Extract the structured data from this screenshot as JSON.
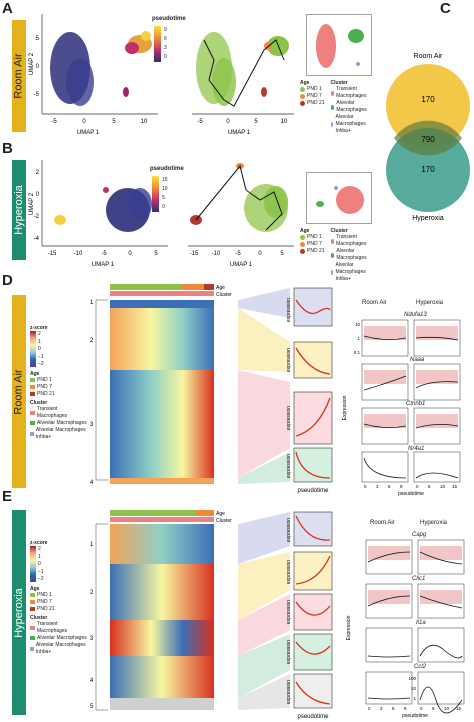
{
  "panels": {
    "a": "A",
    "b": "B",
    "c": "C",
    "d": "D",
    "e": "E"
  },
  "conditions": {
    "room_air": "Room Air",
    "hyperoxia": "Hyperoxia"
  },
  "umap": {
    "xlabel": "UMAP 1",
    "ylabel": "UMAP 2",
    "a_xticks": [
      "-5",
      "0",
      "5",
      "10"
    ],
    "a_yticks": [
      "5",
      "0",
      "-5"
    ],
    "b_xticks": [
      "-15",
      "-10",
      "-5",
      "0",
      "5"
    ],
    "b_yticks": [
      "2",
      "0",
      "-2",
      "-4"
    ],
    "a_traj_xticks": [
      "-5",
      "0",
      "5",
      "10"
    ],
    "b_traj_xticks": [
      "-15",
      "-10",
      "-5",
      "0",
      "5"
    ]
  },
  "pseudotime": {
    "title": "pseudotime",
    "a_ticks": [
      "9",
      "6",
      "3",
      "0"
    ],
    "b_ticks": [
      "15",
      "10",
      "5",
      "0"
    ]
  },
  "legend": {
    "age_title": "Age",
    "cluster_title": "Cluster",
    "ages": [
      "PND 1",
      "PND 7",
      "PND 21"
    ],
    "clusters": [
      "Transient Macrophages",
      "Alveolar Macrophages",
      "Alveolar Macrophages Inhba+"
    ],
    "age_colors": [
      "#8bc34a",
      "#ef8a3a",
      "#b33a2a"
    ],
    "cluster_colors": [
      "#ef8080",
      "#4caf50",
      "#8aa6d8"
    ]
  },
  "venn": {
    "top_label": "Room Air",
    "bottom_label": "Hyperoxia",
    "top_only": "170",
    "overlap": "790",
    "bottom_only": "170",
    "top_color": "#f2c43d",
    "bottom_color": "#3a9c8c"
  },
  "heatmap": {
    "zscore_title": "z-score",
    "zscore_ticks": [
      "2",
      "1",
      "0",
      "−1",
      "−2"
    ],
    "age_label": "Age",
    "cluster_label": "Cluster",
    "d_clusters": [
      "1",
      "2",
      "3",
      "4"
    ],
    "e_clusters": [
      "1",
      "2",
      "3",
      "4",
      "5"
    ],
    "expression": "expression",
    "pseudotime_x": "pseudotime"
  },
  "genes": {
    "col_room_air": "Room Air",
    "col_hyperoxia": "Hyperoxia",
    "ylabel": "Expression",
    "xlabel": "pseudotime",
    "xticks_ra": [
      "0",
      "3",
      "6",
      "9"
    ],
    "xticks_hx": [
      "0",
      "5",
      "10",
      "15"
    ],
    "d_genes": [
      "Ndufa13",
      "Naaa",
      "Ctnnb1",
      "Nr4a1"
    ],
    "e_genes": [
      "Capg",
      "Clic1",
      "Il1a",
      "Ccl2"
    ],
    "yticks_a": [
      "10",
      "1",
      "0.1"
    ],
    "yticks_b": [
      "100",
      "10",
      "1"
    ]
  }
}
